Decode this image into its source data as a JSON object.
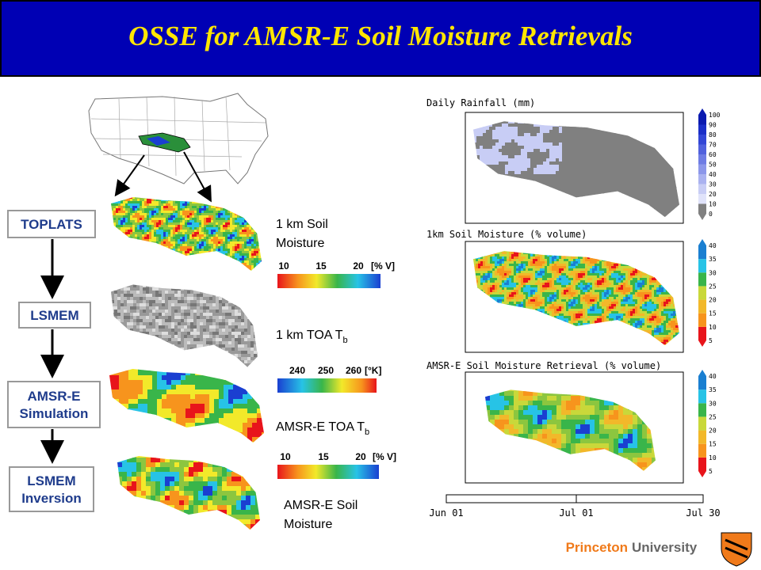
{
  "header": {
    "title": "OSSE for AMSR-E Soil Moisture Retrievals"
  },
  "flow": {
    "steps": [
      [
        "TOPLATS"
      ],
      [
        "LSMEM"
      ],
      [
        "AMSR-E",
        "Simulation"
      ],
      [
        "LSMEM",
        "Inversion"
      ]
    ]
  },
  "left_panels": [
    {
      "label": [
        "1 km Soil",
        "Moisture"
      ],
      "scale": {
        "ticks": [
          10,
          15,
          20
        ],
        "unit": "[% V]"
      }
    },
    {
      "label": {
        "text": "1 km TOA T",
        "sub": "b"
      },
      "scale": {
        "ticks": [
          240,
          250,
          260
        ],
        "unit": "[°K]"
      }
    },
    {
      "label": {
        "text": "AMSR-E TOA T",
        "sub": "b"
      },
      "scale": {
        "ticks": [
          10,
          15,
          20
        ],
        "unit": "[% V]"
      }
    },
    {
      "label": [
        "AMSR-E Soil",
        "Moisture"
      ]
    }
  ],
  "right_panels": [
    {
      "title": "Daily Rainfall (mm)",
      "ticks": [
        100,
        90,
        80,
        70,
        60,
        50,
        40,
        30,
        20,
        10,
        0
      ]
    },
    {
      "title": "1km Soil Moisture (% volume)",
      "ticks": [
        40,
        35,
        30,
        25,
        20,
        15,
        10,
        5
      ]
    },
    {
      "title": "AMSR-E Soil Moisture Retrieval (% volume)",
      "ticks": [
        40,
        35,
        30,
        25,
        20,
        15,
        10,
        5
      ]
    }
  ],
  "timeline": {
    "labels": [
      "Jun 01",
      "Jul 01",
      "Jul 30"
    ]
  },
  "footer": {
    "brand": [
      "Princeton",
      "University"
    ]
  }
}
